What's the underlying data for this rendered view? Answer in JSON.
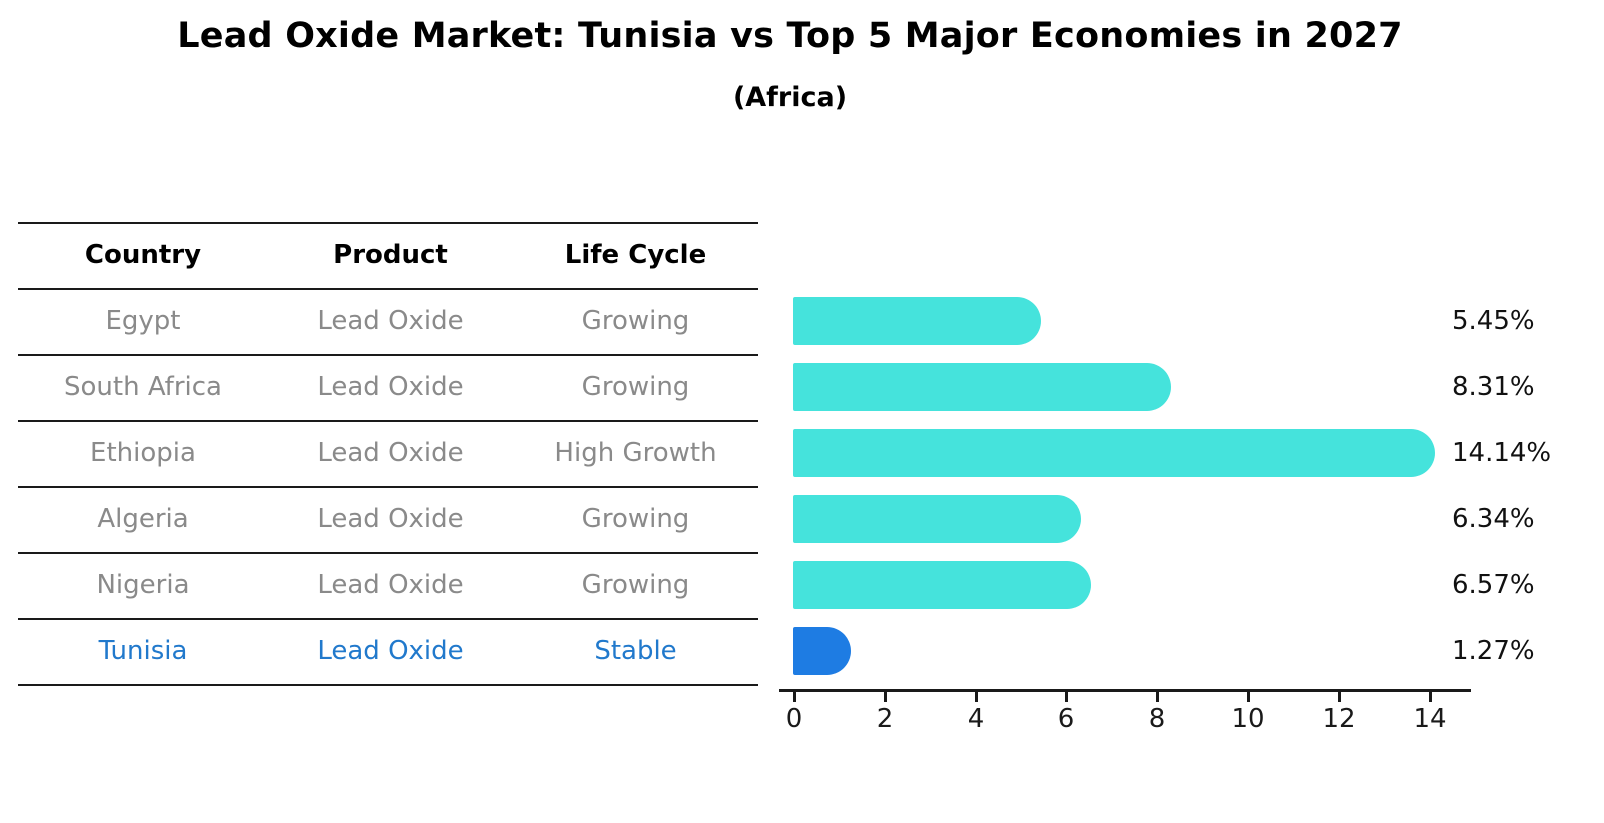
{
  "title": "Lead Oxide Market: Tunisia vs Top 5 Major Economies in 2027",
  "subtitle": "(Africa)",
  "table": {
    "headers": [
      "Country",
      "Product",
      "Life Cycle"
    ],
    "rows": [
      {
        "country": "Egypt",
        "product": "Lead Oxide",
        "life_cycle": "Growing",
        "highlight": false
      },
      {
        "country": "South Africa",
        "product": "Lead Oxide",
        "life_cycle": "Growing",
        "highlight": false
      },
      {
        "country": "Ethiopia",
        "product": "Lead Oxide",
        "life_cycle": "High Growth",
        "highlight": false
      },
      {
        "country": "Algeria",
        "product": "Lead Oxide",
        "life_cycle": "Growing",
        "highlight": false
      },
      {
        "country": "Nigeria",
        "product": "Lead Oxide",
        "life_cycle": "Growing",
        "highlight": false
      },
      {
        "country": "Tunisia",
        "product": "Lead Oxide",
        "life_cycle": "Stable",
        "highlight": true
      }
    ]
  },
  "chart_data": {
    "type": "bar",
    "orientation": "horizontal",
    "title": "Lead Oxide Market: Tunisia vs Top 5 Major Economies in 2027",
    "subtitle": "(Africa)",
    "categories": [
      "Egypt",
      "South Africa",
      "Ethiopia",
      "Algeria",
      "Nigeria",
      "Tunisia"
    ],
    "values": [
      5.45,
      8.31,
      14.14,
      6.34,
      6.57,
      1.27
    ],
    "labels": [
      "5.45%",
      "8.31%",
      "14.14%",
      "6.34%",
      "6.57%",
      "1.27%"
    ],
    "xlabel": "",
    "ylabel": "",
    "xlim": [
      0,
      15
    ],
    "xticks": [
      0,
      2,
      4,
      6,
      8,
      10,
      12,
      14
    ],
    "grid": false,
    "legend": false,
    "colors": {
      "bar": "#45e3dc",
      "highlight_bar": "#1e7ce3",
      "highlight_text": "#2179cc",
      "text_muted": "#8a8a8a"
    }
  }
}
